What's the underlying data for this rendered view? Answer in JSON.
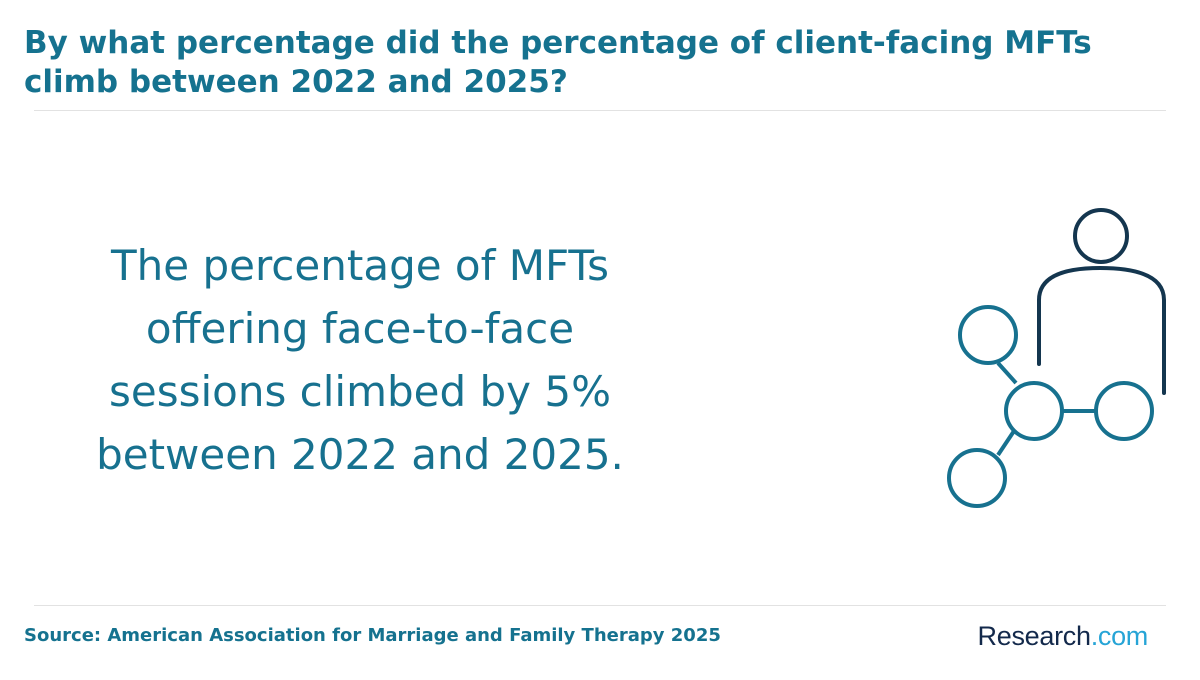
{
  "header": {
    "title": "By what percentage did the percentage of client-facing MFTs climb between 2022 and 2025?"
  },
  "main": {
    "statement": "The percentage of MFTs offering face-to-face sessions climbed by 5% between 2022 and 2025.",
    "illustration_icon": "person-network-icon"
  },
  "footer": {
    "source": "Source: American Association for Marriage and Family Therapy 2025",
    "logo_main": "Research",
    "logo_suffix": ".com"
  },
  "colors": {
    "accent": "#15728f",
    "icon_dark": "#14364f",
    "logo_navy": "#13294b",
    "logo_blue": "#26a4d6"
  }
}
